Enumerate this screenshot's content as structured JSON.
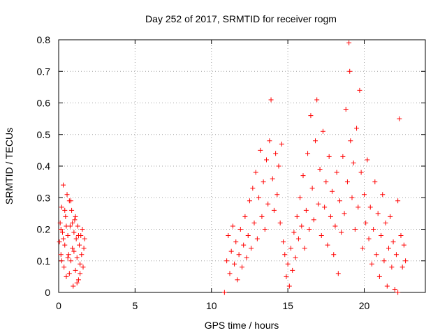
{
  "chart_data": {
    "type": "scatter",
    "title": "Day 252 of 2017, SRMTID for receiver rogm",
    "xlabel": "GPS time / hours",
    "ylabel": "SRMTID / TECUs",
    "xlim": [
      0,
      24
    ],
    "ylim": [
      0,
      0.8
    ],
    "x_ticks": [
      0,
      5,
      10,
      15,
      20
    ],
    "y_ticks": [
      0,
      0.1,
      0.2,
      0.3,
      0.4,
      0.5,
      0.6,
      0.7,
      0.8
    ],
    "x_tick_labels": [
      "0",
      "5",
      "10",
      "15",
      "20"
    ],
    "y_tick_labels": [
      "0",
      "0.1",
      "0.2",
      "0.3",
      "0.4",
      "0.5",
      "0.6",
      "0.7",
      "0.8"
    ],
    "grid": true,
    "marker": "+",
    "marker_color": "#ff0000",
    "series": [
      {
        "points": [
          [
            0.05,
            0.16
          ],
          [
            0.1,
            0.22
          ],
          [
            0.15,
            0.12
          ],
          [
            0.2,
            0.27
          ],
          [
            0.25,
            0.19
          ],
          [
            0.3,
            0.34
          ],
          [
            0.35,
            0.08
          ],
          [
            0.4,
            0.15
          ],
          [
            0.45,
            0.24
          ],
          [
            0.5,
            0.05
          ],
          [
            0.55,
            0.31
          ],
          [
            0.6,
            0.18
          ],
          [
            0.65,
            0.12
          ],
          [
            0.7,
            0.29
          ],
          [
            0.75,
            0.21
          ],
          [
            0.8,
            0.1
          ],
          [
            0.85,
            0.26
          ],
          [
            0.9,
            0.14
          ],
          [
            0.95,
            0.02
          ],
          [
            1.0,
            0.19
          ],
          [
            1.05,
            0.23
          ],
          [
            1.1,
            0.07
          ],
          [
            1.15,
            0.17
          ],
          [
            1.2,
            0.11
          ],
          [
            1.25,
            0.21
          ],
          [
            1.3,
            0.04
          ],
          [
            1.35,
            0.15
          ],
          [
            1.4,
            0.09
          ],
          [
            1.45,
            0.18
          ],
          [
            1.5,
            0.12
          ],
          [
            1.55,
            0.2
          ],
          [
            1.6,
            0.08
          ],
          [
            1.65,
            0.14
          ],
          [
            1.7,
            0.17
          ],
          [
            0.2,
            0.1
          ],
          [
            0.5,
            0.21
          ],
          [
            0.8,
            0.29
          ],
          [
            1.0,
            0.13
          ],
          [
            1.3,
            0.18
          ],
          [
            0.4,
            0.26
          ],
          [
            0.7,
            0.06
          ],
          [
            1.1,
            0.24
          ],
          [
            0.15,
            0.2
          ],
          [
            0.6,
            0.11
          ],
          [
            0.9,
            0.22
          ],
          [
            1.4,
            0.06
          ],
          [
            0.3,
            0.17
          ],
          [
            1.2,
            0.03
          ],
          [
            10.85,
            0.0
          ],
          [
            11.0,
            0.1
          ],
          [
            11.1,
            0.18
          ],
          [
            11.2,
            0.06
          ],
          [
            11.3,
            0.13
          ],
          [
            11.4,
            0.21
          ],
          [
            11.5,
            0.09
          ],
          [
            11.6,
            0.16
          ],
          [
            11.7,
            0.04
          ],
          [
            11.8,
            0.12
          ],
          [
            11.9,
            0.2
          ],
          [
            12.0,
            0.08
          ],
          [
            12.1,
            0.15
          ],
          [
            12.2,
            0.24
          ],
          [
            12.3,
            0.11
          ],
          [
            12.4,
            0.18
          ],
          [
            12.5,
            0.29
          ],
          [
            12.6,
            0.14
          ],
          [
            12.7,
            0.33
          ],
          [
            12.8,
            0.22
          ],
          [
            12.9,
            0.38
          ],
          [
            13.0,
            0.17
          ],
          [
            13.1,
            0.3
          ],
          [
            13.2,
            0.45
          ],
          [
            13.3,
            0.24
          ],
          [
            13.4,
            0.35
          ],
          [
            13.5,
            0.2
          ],
          [
            13.6,
            0.42
          ],
          [
            13.7,
            0.28
          ],
          [
            13.8,
            0.48
          ],
          [
            13.9,
            0.61
          ],
          [
            14.0,
            0.36
          ],
          [
            14.1,
            0.26
          ],
          [
            14.2,
            0.44
          ],
          [
            14.3,
            0.31
          ],
          [
            14.4,
            0.4
          ],
          [
            14.5,
            0.22
          ],
          [
            14.6,
            0.47
          ],
          [
            14.7,
            0.16
          ],
          [
            14.8,
            0.12
          ],
          [
            14.9,
            0.05
          ],
          [
            15.0,
            0.09
          ],
          [
            15.1,
            0.02
          ],
          [
            15.2,
            0.14
          ],
          [
            15.3,
            0.07
          ],
          [
            15.4,
            0.19
          ],
          [
            15.5,
            0.11
          ],
          [
            15.6,
            0.24
          ],
          [
            15.7,
            0.17
          ],
          [
            15.8,
            0.3
          ],
          [
            15.9,
            0.21
          ],
          [
            16.0,
            0.37
          ],
          [
            16.1,
            0.14
          ],
          [
            16.2,
            0.26
          ],
          [
            16.3,
            0.44
          ],
          [
            16.4,
            0.2
          ],
          [
            16.5,
            0.56
          ],
          [
            16.6,
            0.33
          ],
          [
            16.7,
            0.23
          ],
          [
            16.8,
            0.48
          ],
          [
            16.9,
            0.61
          ],
          [
            17.0,
            0.28
          ],
          [
            17.1,
            0.39
          ],
          [
            17.2,
            0.18
          ],
          [
            17.3,
            0.51
          ],
          [
            17.4,
            0.27
          ],
          [
            17.5,
            0.35
          ],
          [
            17.6,
            0.15
          ],
          [
            17.7,
            0.43
          ],
          [
            17.8,
            0.24
          ],
          [
            17.9,
            0.32
          ],
          [
            18.0,
            0.12
          ],
          [
            18.1,
            0.21
          ],
          [
            18.2,
            0.38
          ],
          [
            18.3,
            0.06
          ],
          [
            18.4,
            0.29
          ],
          [
            18.5,
            0.19
          ],
          [
            18.6,
            0.43
          ],
          [
            18.7,
            0.25
          ],
          [
            18.8,
            0.58
          ],
          [
            18.9,
            0.35
          ],
          [
            19.0,
            0.79
          ],
          [
            19.05,
            0.7
          ],
          [
            19.1,
            0.48
          ],
          [
            19.2,
            0.3
          ],
          [
            19.3,
            0.41
          ],
          [
            19.4,
            0.2
          ],
          [
            19.5,
            0.52
          ],
          [
            19.6,
            0.27
          ],
          [
            19.7,
            0.64
          ],
          [
            19.8,
            0.38
          ],
          [
            19.9,
            0.14
          ],
          [
            20.0,
            0.31
          ],
          [
            20.1,
            0.22
          ],
          [
            20.2,
            0.42
          ],
          [
            20.3,
            0.17
          ],
          [
            20.4,
            0.27
          ],
          [
            20.5,
            0.09
          ],
          [
            20.6,
            0.2
          ],
          [
            20.7,
            0.35
          ],
          [
            20.8,
            0.12
          ],
          [
            20.9,
            0.25
          ],
          [
            21.0,
            0.05
          ],
          [
            21.1,
            0.18
          ],
          [
            21.2,
            0.31
          ],
          [
            21.3,
            0.1
          ],
          [
            21.4,
            0.22
          ],
          [
            21.5,
            0.02
          ],
          [
            21.6,
            0.14
          ],
          [
            21.7,
            0.24
          ],
          [
            21.8,
            0.08
          ],
          [
            21.9,
            0.16
          ],
          [
            22.0,
            0.01
          ],
          [
            22.1,
            0.12
          ],
          [
            22.2,
            0.29
          ],
          [
            22.3,
            0.55
          ],
          [
            22.4,
            0.18
          ],
          [
            22.5,
            0.08
          ],
          [
            22.6,
            0.15
          ],
          [
            22.7,
            0.1
          ],
          [
            22.2,
            0.0
          ]
        ]
      }
    ]
  }
}
